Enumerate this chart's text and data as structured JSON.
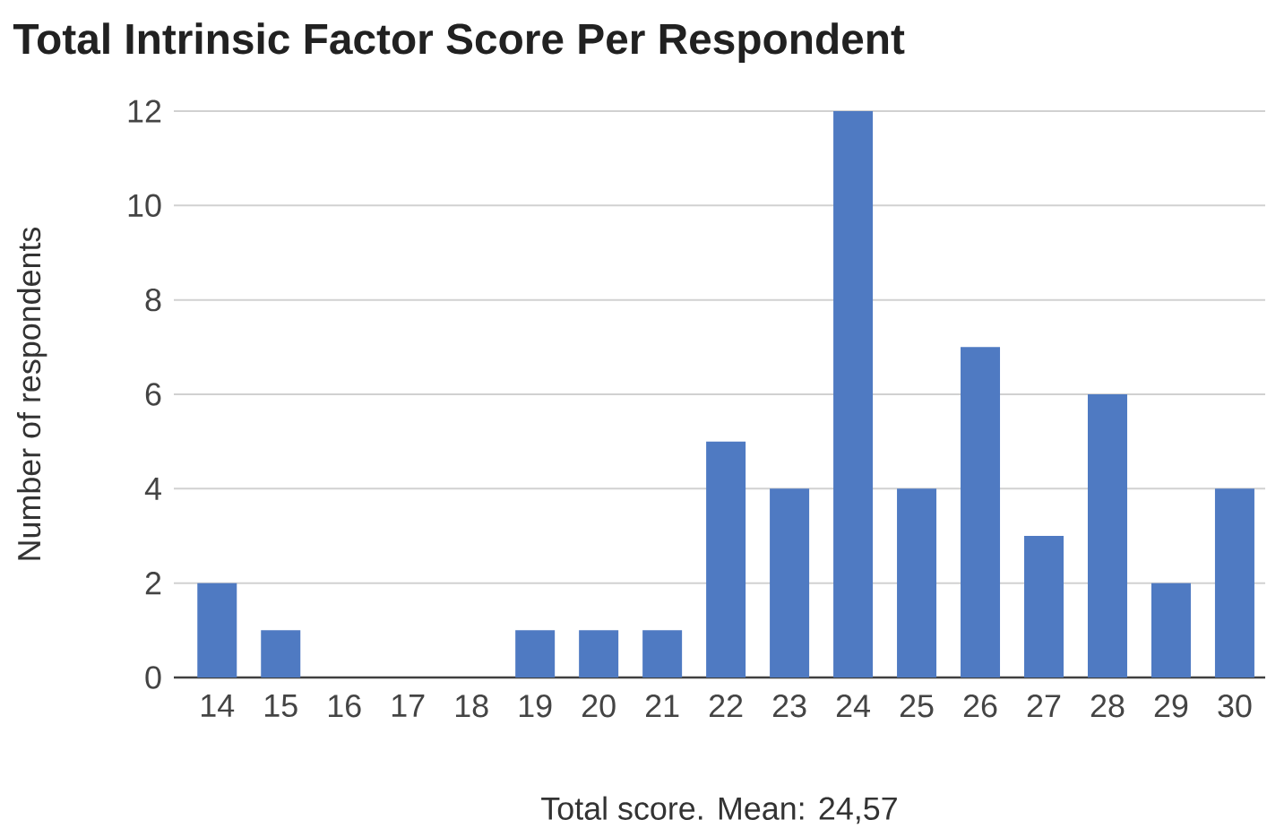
{
  "chart_data": {
    "type": "bar",
    "title": "Total Intrinsic Factor Score Per Respondent",
    "xlabel": "Total score. Mean: 24,57",
    "ylabel": "Number of respondents",
    "categories": [
      "14",
      "15",
      "16",
      "17",
      "18",
      "19",
      "20",
      "21",
      "22",
      "23",
      "24",
      "25",
      "26",
      "27",
      "28",
      "29",
      "30"
    ],
    "values": [
      2,
      1,
      0,
      0,
      0,
      1,
      1,
      1,
      5,
      4,
      12,
      4,
      7,
      3,
      6,
      2,
      4
    ],
    "color": "#4f7ac2",
    "ylim": [
      0,
      12
    ],
    "yticks": [
      0,
      2,
      4,
      6,
      8,
      10,
      12
    ],
    "grid": "y"
  }
}
